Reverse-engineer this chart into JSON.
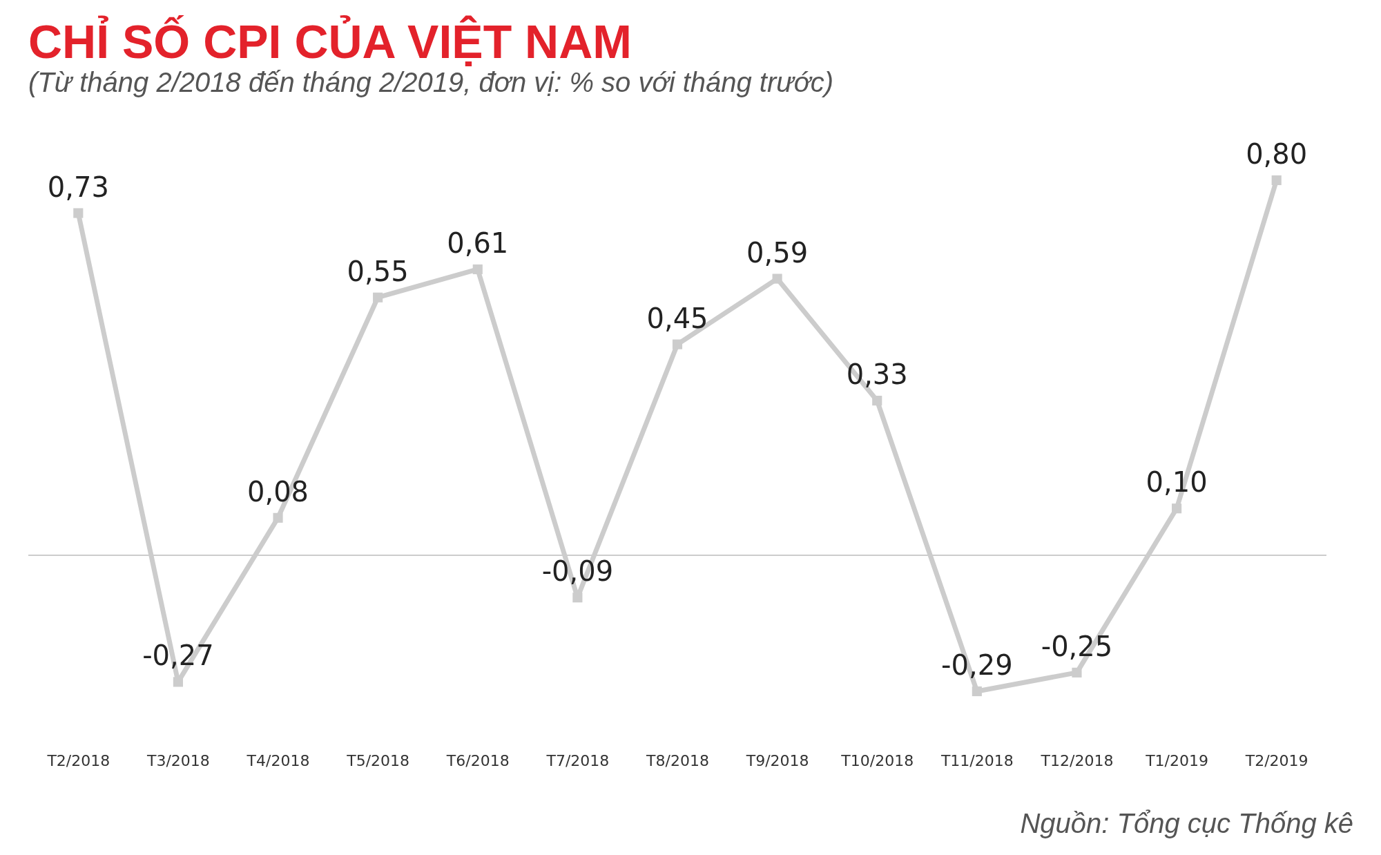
{
  "chart_data": {
    "type": "line",
    "title": "CHỈ SỐ CPI CỦA VIỆT NAM",
    "subtitle": "(Từ tháng 2/2018 đến tháng 2/2019, đơn vị: % so với tháng trước)",
    "categories": [
      "T2/2018",
      "T3/2018",
      "T4/2018",
      "T5/2018",
      "T6/2018",
      "T7/2018",
      "T8/2018",
      "T9/2018",
      "T10/2018",
      "T11/2018",
      "T12/2018",
      "T1/2019",
      "T2/2019"
    ],
    "series": [
      {
        "color": "#cccccc",
        "values": [
          0.73,
          -0.27,
          0.08,
          0.55,
          0.61,
          -0.09,
          0.45,
          0.59,
          0.33,
          -0.29,
          -0.25,
          0.1,
          0.8
        ],
        "value_labels": [
          "0,73",
          "-0,27",
          "0,08",
          "0,55",
          "0,61",
          "-0,09",
          "0,45",
          "0,59",
          "0,33",
          "-0,29",
          "-0,25",
          "0,10",
          "0,80"
        ]
      }
    ],
    "ref_lines": [
      {
        "axis": "y",
        "value": 0,
        "color": "#cccccc"
      }
    ],
    "marker": "square",
    "line_style": "solid",
    "grid": false,
    "legend": false,
    "annotations": [
      "Nguồn: Tổng cục Thống kê"
    ]
  }
}
